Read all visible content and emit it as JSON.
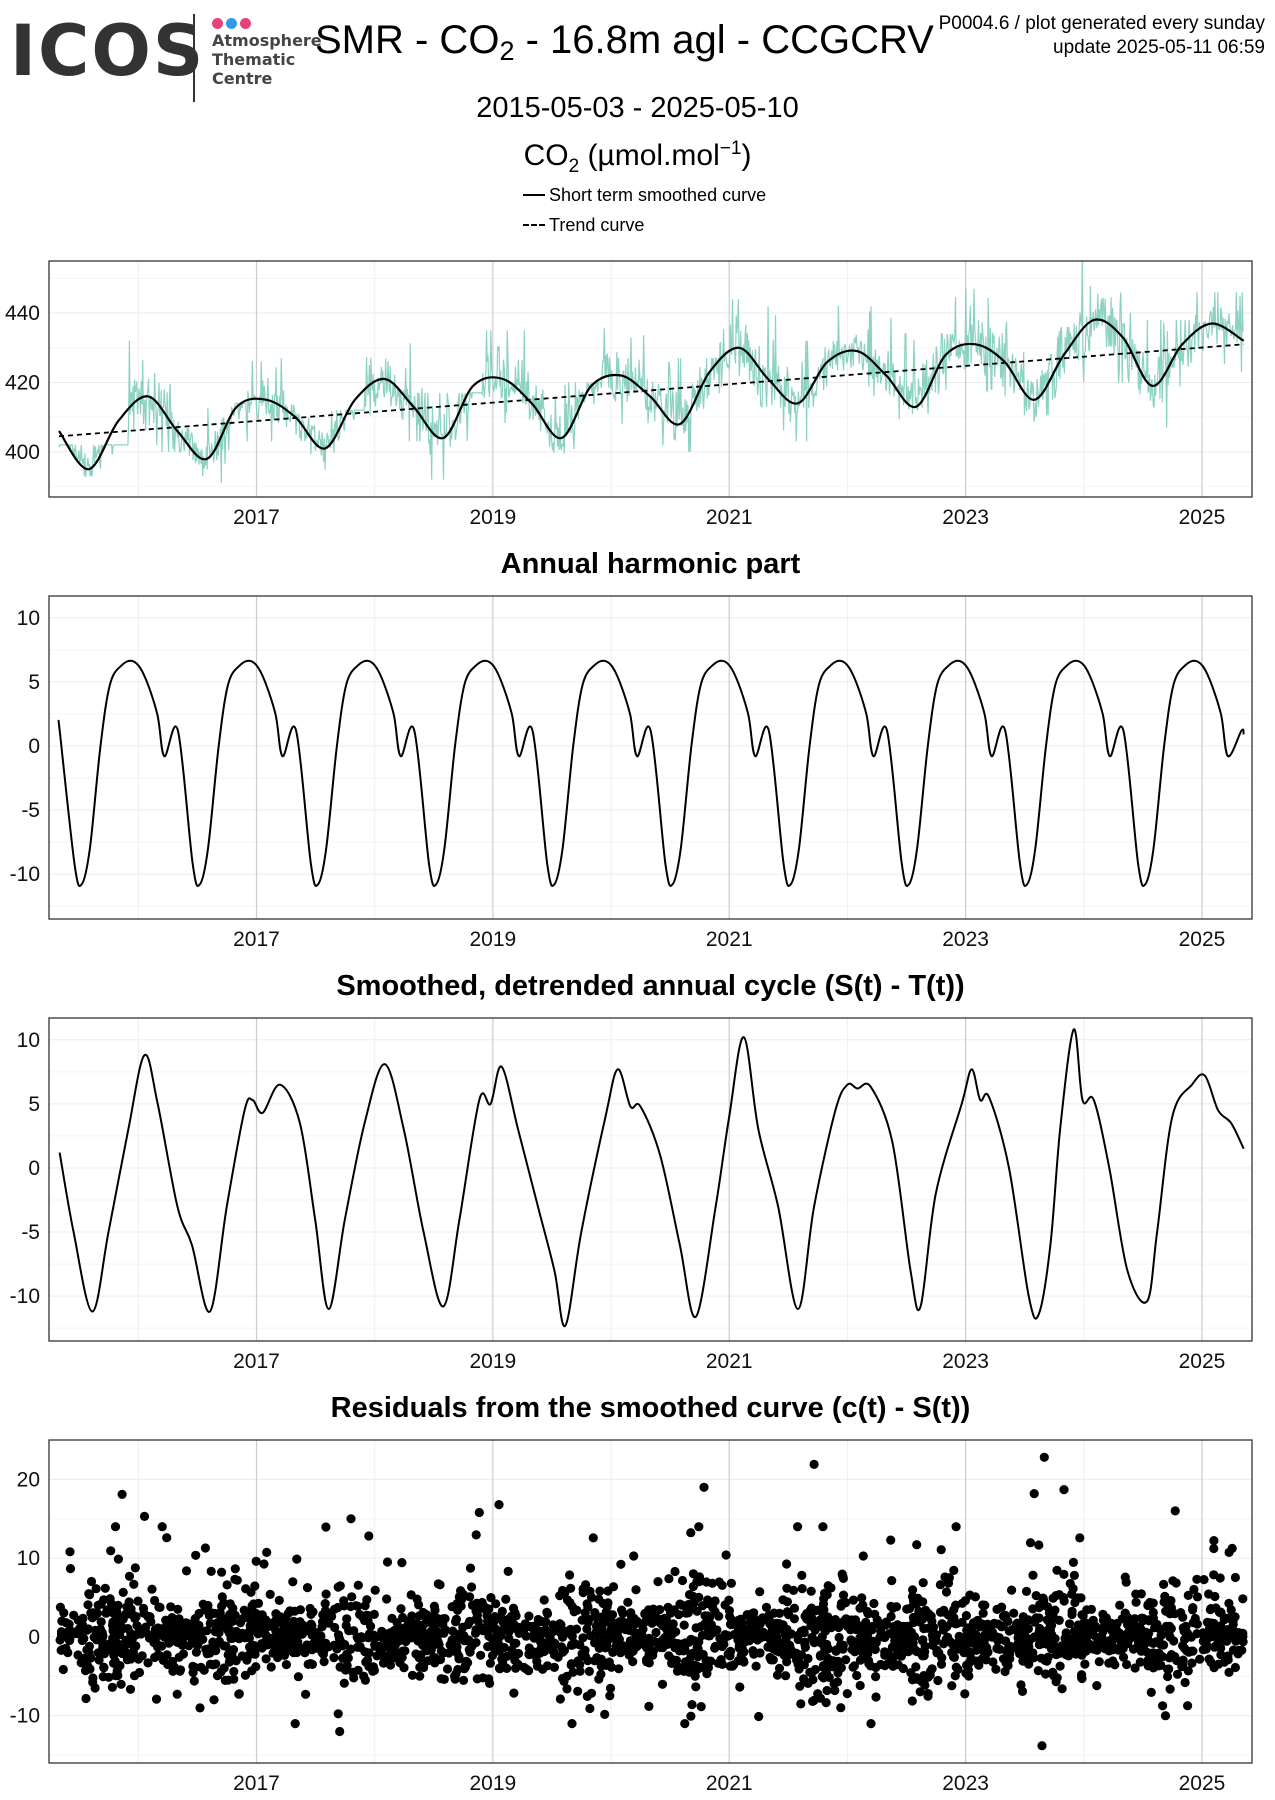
{
  "header": {
    "logo_word": "ICOS",
    "logo_lines": [
      "Atmosphere",
      "Thematic",
      "Centre"
    ],
    "title_prefix": "SMR - CO",
    "title_sub": "2",
    "title_suffix": " - 16.8m agl - CCGCRV",
    "meta_line1": "P0004.6 / plot generated every sunday",
    "meta_line2": "update  2025-05-11 06:59",
    "date_range": "2015-05-03 - 2025-05-10",
    "units_prefix": "CO",
    "units_sub": "2",
    "units_middle": " (µmol.mol",
    "units_sup": "−1",
    "units_suffix": ")"
  },
  "legend": {
    "short_term": "Short term smoothed curve",
    "trend": "Trend curve"
  },
  "colors": {
    "raw": "#7fcdbb",
    "line": "#000000",
    "grid_major": "#cccccc",
    "grid_minor": "#eeeeee",
    "logo_dots": [
      "#e8407a",
      "#2f9be8",
      "#e8407a"
    ]
  },
  "chart_data": [
    {
      "type": "line",
      "title": "",
      "xlim": [
        "2015-05-03",
        "2025-05-10"
      ],
      "ylim": [
        387,
        455
      ],
      "xticks": [
        "2017",
        "2019",
        "2021",
        "2023",
        "2025"
      ],
      "yticks": [
        400,
        420,
        440
      ],
      "series": [
        {
          "name": "Short term smoothed curve",
          "style": "solid",
          "x": [
            "2015-05-01",
            "2015-08-01",
            "2015-11-01",
            "2016-02-01",
            "2016-05-01",
            "2016-08-01",
            "2016-11-01",
            "2017-02-01",
            "2017-05-01",
            "2017-08-01",
            "2017-11-01",
            "2018-02-01",
            "2018-05-01",
            "2018-08-01",
            "2018-11-01",
            "2019-02-01",
            "2019-05-01",
            "2019-08-01",
            "2019-11-01",
            "2020-02-01",
            "2020-05-01",
            "2020-08-01",
            "2020-11-01",
            "2021-02-01",
            "2021-05-01",
            "2021-08-01",
            "2021-11-01",
            "2022-02-01",
            "2022-05-01",
            "2022-08-01",
            "2022-11-01",
            "2023-02-01",
            "2023-05-01",
            "2023-08-01",
            "2023-11-01",
            "2024-02-01",
            "2024-05-01",
            "2024-08-01",
            "2024-11-01",
            "2025-02-01",
            "2025-05-10"
          ],
          "values": [
            406,
            395,
            409,
            416,
            406,
            398,
            413,
            415,
            410,
            401,
            415,
            421,
            413,
            404,
            419,
            421,
            414,
            404,
            419,
            422,
            416,
            408,
            423,
            430,
            421,
            414,
            426,
            429,
            422,
            413,
            428,
            431,
            426,
            415,
            428,
            438,
            433,
            419,
            431,
            437,
            432
          ]
        },
        {
          "name": "Trend curve",
          "style": "dashed",
          "x": [
            "2015-05-01",
            "2025-05-10"
          ],
          "values": [
            404.5,
            431
          ]
        }
      ],
      "raw_data": {
        "description": "light teal noisy daily/hourly observations around the short term smoothed curve",
        "envelope": [
          {
            "date": "2015-09-01",
            "min": 386,
            "max": 400
          },
          {
            "date": "2016-03-01",
            "min": 402,
            "max": 430
          },
          {
            "date": "2016-09-01",
            "min": 393,
            "max": 412
          },
          {
            "date": "2017-03-01",
            "min": 405,
            "max": 425
          },
          {
            "date": "2017-09-01",
            "min": 393,
            "max": 410
          },
          {
            "date": "2018-03-01",
            "min": 405,
            "max": 430
          },
          {
            "date": "2018-09-01",
            "min": 394,
            "max": 415
          },
          {
            "date": "2019-03-01",
            "min": 408,
            "max": 433
          },
          {
            "date": "2019-09-01",
            "min": 397,
            "max": 418
          },
          {
            "date": "2020-03-01",
            "min": 410,
            "max": 436
          },
          {
            "date": "2020-09-01",
            "min": 402,
            "max": 425
          },
          {
            "date": "2021-03-01",
            "min": 415,
            "max": 442
          },
          {
            "date": "2021-09-01",
            "min": 405,
            "max": 430
          },
          {
            "date": "2022-03-01",
            "min": 418,
            "max": 440
          },
          {
            "date": "2022-09-01",
            "min": 407,
            "max": 432
          },
          {
            "date": "2023-03-01",
            "min": 418,
            "max": 445
          },
          {
            "date": "2023-09-01",
            "min": 405,
            "max": 434
          },
          {
            "date": "2024-03-01",
            "min": 422,
            "max": 454
          },
          {
            "date": "2024-09-01",
            "min": 409,
            "max": 436
          },
          {
            "date": "2025-03-01",
            "min": 425,
            "max": 444
          }
        ]
      }
    },
    {
      "type": "line",
      "title": "Annual harmonic part",
      "xlim": [
        "2015-05-03",
        "2025-05-10"
      ],
      "ylim": [
        -13.5,
        11.7
      ],
      "xticks": [
        "2017",
        "2019",
        "2021",
        "2023",
        "2025"
      ],
      "yticks": [
        -10,
        -5,
        0,
        5,
        10
      ],
      "series": [
        {
          "name": "",
          "style": "solid",
          "phase_points": [
            {
              "frac": 0.335,
              "value": 1.2
            },
            {
              "frac": 0.46,
              "value": -9.2
            },
            {
              "frac": 0.52,
              "value": -10.8
            },
            {
              "frac": 0.59,
              "value": -8.0
            },
            {
              "frac": 0.68,
              "value": 0.0
            },
            {
              "frac": 0.76,
              "value": 4.8
            },
            {
              "frac": 0.86,
              "value": 6.3
            },
            {
              "frac": 0.96,
              "value": 6.6
            },
            {
              "frac": 1.05,
              "value": 5.5
            },
            {
              "frac": 1.16,
              "value": 2.5
            },
            {
              "frac": 1.22,
              "value": -0.8
            },
            {
              "frac": 1.335,
              "value": 1.2
            }
          ],
          "x_start": "2015-05-03",
          "x_end": "2025-05-10"
        }
      ]
    },
    {
      "type": "line",
      "title": "Smoothed, detrended annual cycle (S(t) - T(t))",
      "xlim": [
        "2015-05-03",
        "2025-05-10"
      ],
      "ylim": [
        -13.5,
        11.7
      ],
      "xticks": [
        "2017",
        "2019",
        "2021",
        "2023",
        "2025"
      ],
      "yticks": [
        -10,
        -5,
        0,
        5,
        10
      ],
      "series": [
        {
          "name": "",
          "style": "solid",
          "x": [
            "2015-05-03",
            "2015-06-15",
            "2015-08-12",
            "2015-10-01",
            "2015-12-01",
            "2016-01-20",
            "2016-03-01",
            "2016-05-01",
            "2016-06-15",
            "2016-08-10",
            "2016-10-01",
            "2016-11-25",
            "2016-12-20",
            "2017-01-20",
            "2017-03-15",
            "2017-05-15",
            "2017-07-01",
            "2017-08-12",
            "2017-10-01",
            "2017-12-01",
            "2018-02-01",
            "2018-04-01",
            "2018-06-01",
            "2018-08-01",
            "2018-09-20",
            "2018-11-20",
            "2018-12-25",
            "2019-01-28",
            "2019-03-20",
            "2019-05-20",
            "2019-07-10",
            "2019-08-13",
            "2019-10-01",
            "2019-12-15",
            "2020-01-22",
            "2020-03-01",
            "2020-04-01",
            "2020-06-01",
            "2020-08-01",
            "2020-09-20",
            "2020-11-20",
            "2021-01-01",
            "2021-02-15",
            "2021-04-01",
            "2021-06-01",
            "2021-08-01",
            "2021-09-20",
            "2021-11-25",
            "2022-01-01",
            "2022-02-01",
            "2022-03-15",
            "2022-05-20",
            "2022-07-15",
            "2022-08-15",
            "2022-10-01",
            "2022-12-20",
            "2023-01-20",
            "2023-02-15",
            "2023-03-15",
            "2023-05-15",
            "2023-07-15",
            "2023-08-15",
            "2023-09-20",
            "2023-10-20",
            "2023-12-01",
            "2023-12-28",
            "2024-02-01",
            "2024-03-20",
            "2024-05-15",
            "2024-07-15",
            "2024-08-15",
            "2024-10-01",
            "2024-12-01",
            "2025-01-10",
            "2025-02-20",
            "2025-04-01",
            "2025-05-10"
          ],
          "values": [
            1.2,
            -5,
            -11.2,
            -5,
            3,
            8.8,
            5,
            -3,
            -6,
            -11.2,
            -3,
            4.5,
            5.3,
            4.3,
            6.5,
            3.5,
            -4,
            -11.0,
            -4,
            3.5,
            8.1,
            3,
            -5,
            -10.8,
            -4,
            5.3,
            5.0,
            7.9,
            3,
            -3,
            -8,
            -12.3,
            -5,
            4,
            7.7,
            4.8,
            4.8,
            1,
            -6,
            -11.6,
            -3,
            4,
            10.2,
            3,
            -3,
            -11.0,
            -3,
            4.5,
            6.5,
            6.2,
            6.3,
            2,
            -8,
            -10.8,
            -2,
            5,
            7.7,
            5.3,
            5.5,
            0,
            -10,
            -11.4,
            -6,
            3,
            10.8,
            5.3,
            5.3,
            0,
            -8,
            -10.4,
            -5,
            4,
            6.5,
            7.2,
            4.5,
            3.5,
            1.5
          ]
        }
      ]
    },
    {
      "type": "scatter",
      "title": "Residuals from the smoothed curve (c(t) - S(t))",
      "xlim": [
        "2015-05-03",
        "2025-05-10"
      ],
      "ylim": [
        -16,
        25
      ],
      "xticks": [
        "2017",
        "2019",
        "2021",
        "2023",
        "2025"
      ],
      "yticks": [
        -10,
        0,
        10,
        20
      ],
      "series": [
        {
          "name": "",
          "point_count_estimate": 2400,
          "typical_range": [
            -7,
            8
          ],
          "notable_points": [
            {
              "x": "2015-11-12",
              "y": 18.1
            },
            {
              "x": "2016-01-20",
              "y": 15.3
            },
            {
              "x": "2016-03-15",
              "y": 14.0
            },
            {
              "x": "2016-07-10",
              "y": -9.0
            },
            {
              "x": "2017-09-15",
              "y": -12.0
            },
            {
              "x": "2017-10-20",
              "y": 15.0
            },
            {
              "x": "2018-11-20",
              "y": 15.8
            },
            {
              "x": "2019-01-20",
              "y": 16.8
            },
            {
              "x": "2020-10-15",
              "y": 19.0
            },
            {
              "x": "2021-09-20",
              "y": 21.9
            },
            {
              "x": "2023-08-01",
              "y": 18.2
            },
            {
              "x": "2023-08-25",
              "y": -13.8
            },
            {
              "x": "2023-09-01",
              "y": 22.8
            },
            {
              "x": "2023-11-01",
              "y": 18.7
            },
            {
              "x": "2024-09-10",
              "y": -10.0
            },
            {
              "x": "2024-10-10",
              "y": 16.0
            }
          ]
        }
      ]
    }
  ]
}
